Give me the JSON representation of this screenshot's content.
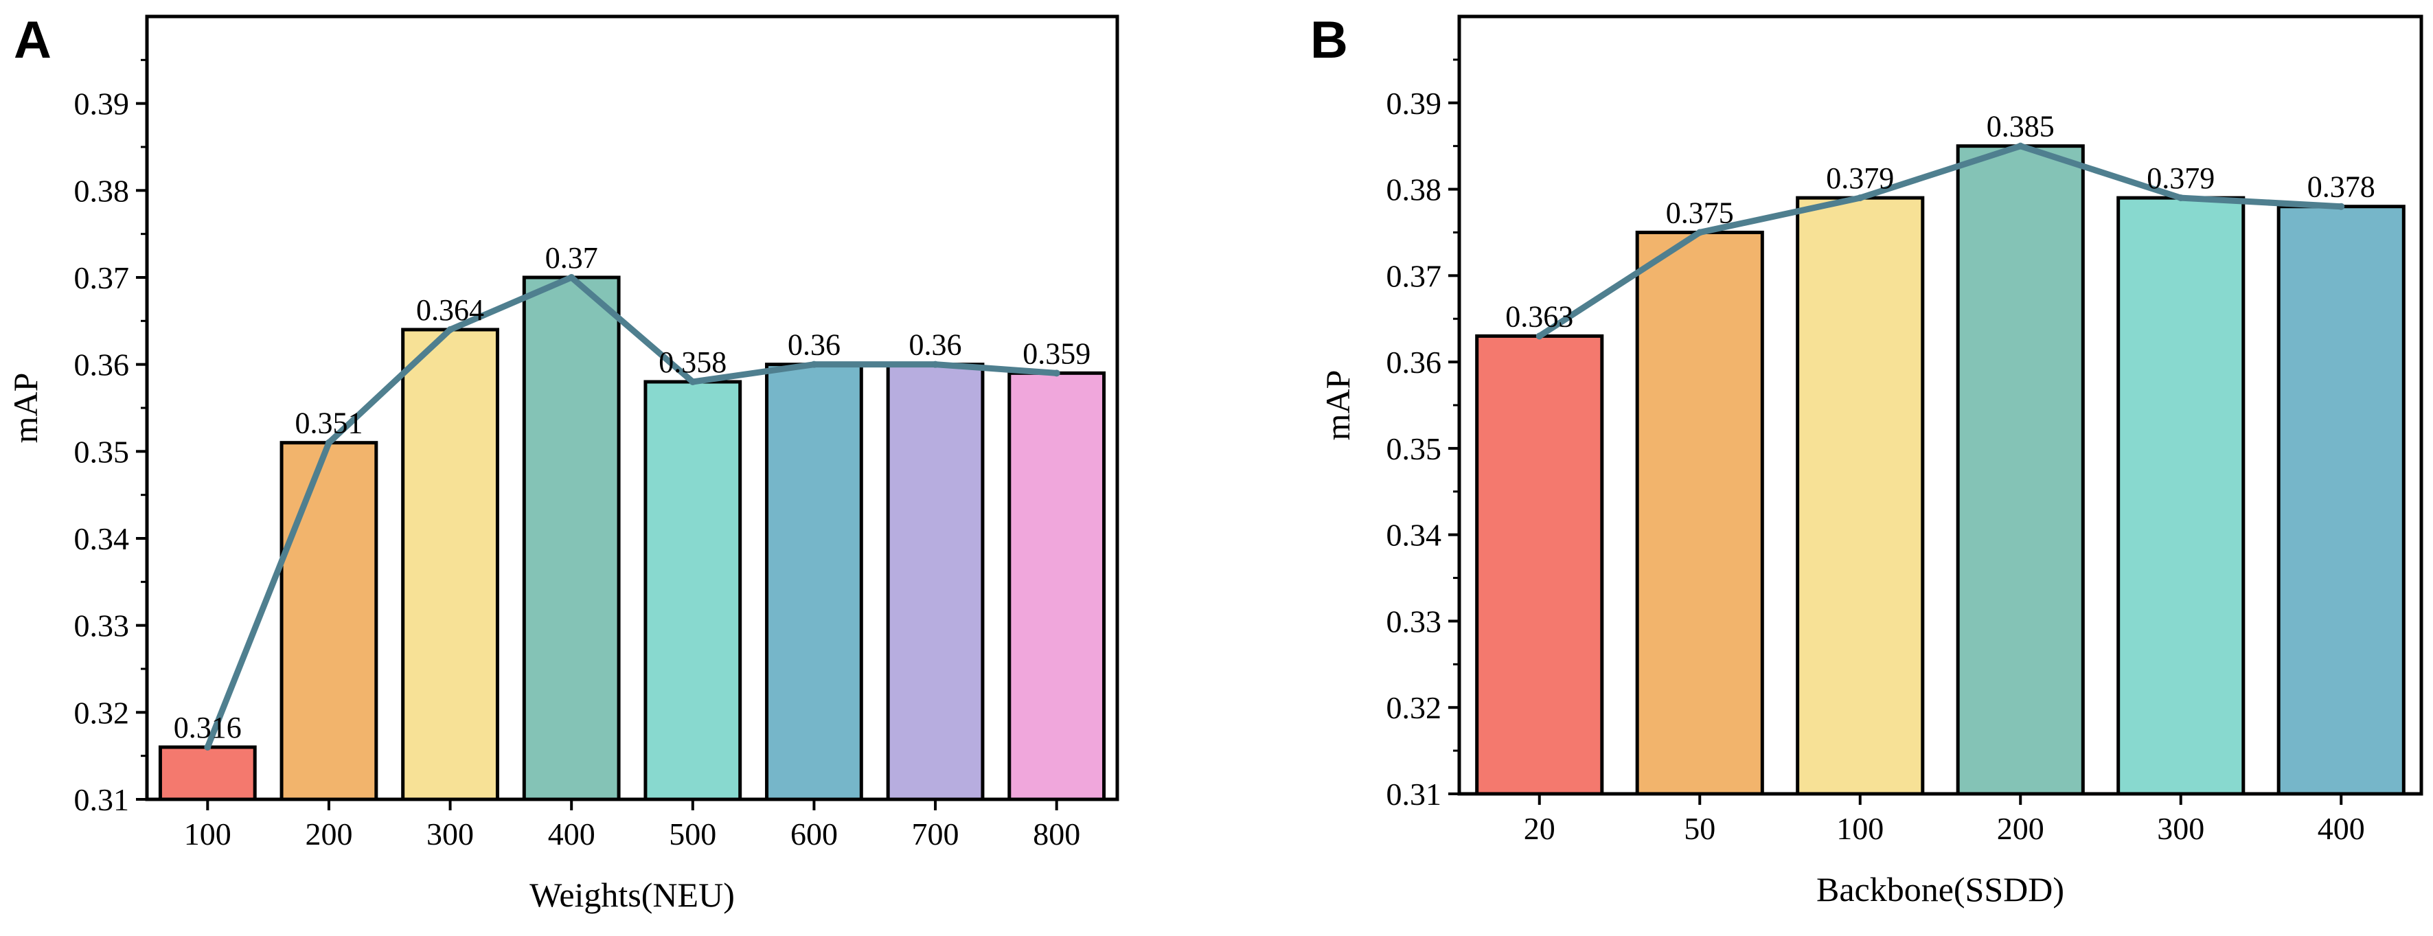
{
  "figure": {
    "panels": [
      {
        "letter": "A"
      },
      {
        "letter": "B"
      }
    ]
  },
  "chart_data": [
    {
      "type": "bar",
      "panel": "A",
      "categories": [
        "100",
        "200",
        "300",
        "400",
        "500",
        "600",
        "700",
        "800"
      ],
      "values": [
        0.316,
        0.351,
        0.364,
        0.37,
        0.358,
        0.36,
        0.36,
        0.359
      ],
      "data_labels": [
        "0.316",
        "0.351",
        "0.364",
        "0.37",
        "0.358",
        "0.36",
        "0.36",
        "0.359"
      ],
      "bar_colors": [
        "#f4796e",
        "#f2b46c",
        "#f7e196",
        "#84c3b6",
        "#88d9cf",
        "#76b6c9",
        "#b7addf",
        "#f0a7dc"
      ],
      "line_overlay": true,
      "line_color": "#4f7f8f",
      "xlabel": "Weights(NEU)",
      "ylabel": "mAP",
      "ylim": [
        0.31,
        0.4
      ],
      "yticks": [
        "0.31",
        "0.32",
        "0.33",
        "0.34",
        "0.35",
        "0.36",
        "0.37",
        "0.38",
        "0.39"
      ],
      "grid": false,
      "legend": "none"
    },
    {
      "type": "bar",
      "panel": "B",
      "categories": [
        "20",
        "50",
        "100",
        "200",
        "300",
        "400"
      ],
      "values": [
        0.363,
        0.375,
        0.379,
        0.385,
        0.379,
        0.378
      ],
      "data_labels": [
        "0.363",
        "0.375",
        "0.379",
        "0.385",
        "0.379",
        "0.378"
      ],
      "bar_colors": [
        "#f4796e",
        "#f2b46c",
        "#f7e196",
        "#84c3b6",
        "#88d9cf",
        "#76b6c9"
      ],
      "line_overlay": true,
      "line_color": "#4f7f8f",
      "xlabel": "Backbone(SSDD)",
      "ylabel": "mAP",
      "ylim": [
        0.31,
        0.4
      ],
      "yticks": [
        "0.31",
        "0.32",
        "0.33",
        "0.34",
        "0.35",
        "0.36",
        "0.37",
        "0.38",
        "0.39"
      ],
      "grid": false,
      "legend": "none"
    }
  ]
}
